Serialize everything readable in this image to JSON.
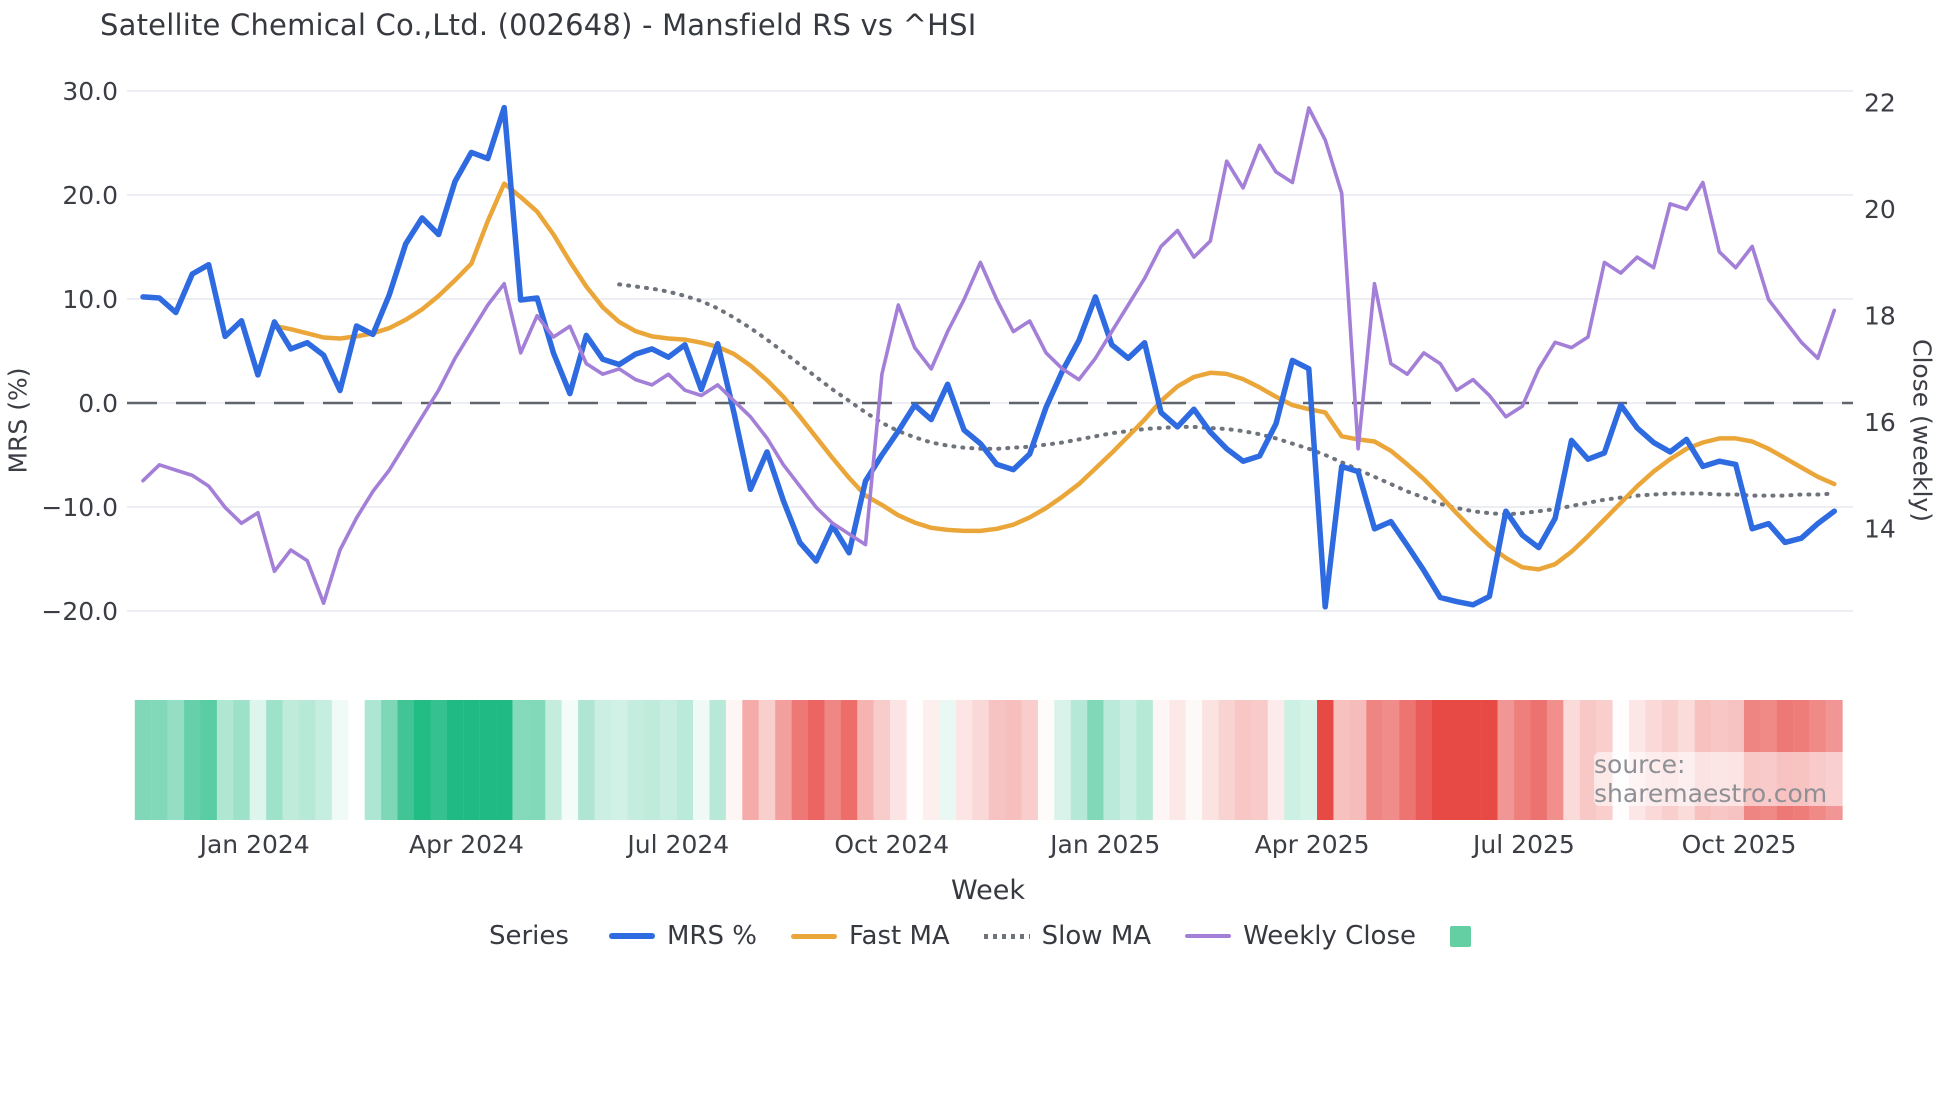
{
  "title": "Satellite Chemical Co.,Ltd. (002648) - Mansfield RS vs ^HSI",
  "source": "source: sharemaestro.com",
  "axes": {
    "left": {
      "label": "MRS (%)",
      "tick_labels": [
        "30.0",
        "20.0",
        "10.0",
        "0.0",
        "−10.0",
        "−20.0"
      ],
      "tick_values": [
        30,
        20,
        10,
        0,
        -10,
        -20
      ]
    },
    "right": {
      "label": "Close (weekly)",
      "tick_labels": [
        "22",
        "20",
        "18",
        "16",
        "14"
      ],
      "tick_values": [
        22,
        20,
        18,
        16,
        14
      ]
    },
    "x": {
      "label": "Week",
      "ticks": [
        {
          "label": "Jan 2024",
          "week": 6.8
        },
        {
          "label": "Apr 2024",
          "week": 19.7
        },
        {
          "label": "Jul 2024",
          "week": 32.6
        },
        {
          "label": "Oct 2024",
          "week": 45.6
        },
        {
          "label": "Jan 2025",
          "week": 58.6
        },
        {
          "label": "Apr 2025",
          "week": 71.2
        },
        {
          "label": "Jul 2025",
          "week": 84.1
        },
        {
          "label": "Oct 2025",
          "week": 97.2
        }
      ]
    }
  },
  "legend": {
    "title": "Series",
    "items": [
      {
        "label": "MRS %",
        "swatch": "line",
        "color": "#2f6be0",
        "thickness": 6
      },
      {
        "label": "Fast MA",
        "swatch": "line",
        "color": "#eba63a",
        "thickness": 5
      },
      {
        "label": "Slow MA",
        "swatch": "dots",
        "color": "#6f737b",
        "thickness": 4
      },
      {
        "label": "Weekly Close",
        "swatch": "line",
        "color": "#a47fd8",
        "thickness": 4
      },
      {
        "label": "",
        "swatch": "square",
        "color": "#63cfa2",
        "thickness": 21
      }
    ]
  },
  "chart_data": {
    "type": "line",
    "x_unit": "week",
    "n_points": 104,
    "x_range_note": "weekly points from mid-Nov 2023 to early-Nov 2025",
    "left_axis_range": [
      -20,
      30
    ],
    "right_axis_range": [
      14,
      22
    ],
    "zero_line": {
      "value": 0,
      "style": "dashed",
      "color": "#60656d"
    },
    "grid": true,
    "series": [
      {
        "name": "MRS %",
        "axis": "left",
        "color": "#2f6be0",
        "width": 5.5,
        "style": "solid",
        "start_week": 0,
        "values": [
          10.2,
          10.1,
          8.7,
          12.4,
          13.3,
          6.4,
          7.9,
          2.7,
          7.8,
          5.2,
          5.8,
          4.6,
          1.2,
          7.4,
          6.6,
          10.4,
          15.3,
          17.8,
          16.2,
          21.3,
          24.1,
          23.5,
          28.4,
          9.9,
          10.1,
          4.8,
          0.9,
          6.5,
          4.2,
          3.7,
          4.7,
          5.2,
          4.4,
          5.6,
          1.3,
          5.7,
          -1.0,
          -8.3,
          -4.7,
          -9.4,
          -13.4,
          -15.2,
          -11.8,
          -14.4,
          -7.5,
          -5.0,
          -2.7,
          -0.2,
          -1.6,
          1.8,
          -2.6,
          -3.9,
          -5.9,
          -6.4,
          -4.9,
          -0.4,
          3.1,
          6.0,
          10.2,
          5.6,
          4.3,
          5.8,
          -0.9,
          -2.3,
          -0.6,
          -2.8,
          -4.4,
          -5.6,
          -5.1,
          -2.0,
          4.1,
          3.3,
          -19.6,
          -6.1,
          -6.6,
          -12.1,
          -11.4,
          -13.7,
          -16.1,
          -18.7,
          -19.1,
          -19.4,
          -18.6,
          -10.4,
          -12.7,
          -13.9,
          -11.1,
          -3.6,
          -5.4,
          -4.8,
          -0.2,
          -2.4,
          -3.8,
          -4.7,
          -3.5,
          -6.1,
          -5.6,
          -5.9,
          -12.1,
          -11.6,
          -13.4,
          -13.0,
          -11.6,
          -10.4
        ]
      },
      {
        "name": "Fast MA",
        "axis": "left",
        "color": "#eba63a",
        "width": 4.5,
        "style": "solid",
        "start_week": 8,
        "values": [
          7.4,
          7.1,
          6.7,
          6.3,
          6.2,
          6.4,
          6.7,
          7.2,
          8.0,
          9.0,
          10.3,
          11.8,
          13.4,
          17.5,
          21.1,
          19.8,
          18.4,
          16.2,
          13.6,
          11.2,
          9.2,
          7.8,
          6.9,
          6.4,
          6.2,
          6.1,
          5.8,
          5.4,
          4.7,
          3.6,
          2.2,
          0.6,
          -1.3,
          -3.3,
          -5.3,
          -7.2,
          -8.9,
          -9.8,
          -10.8,
          -11.5,
          -12.0,
          -12.2,
          -12.3,
          -12.3,
          -12.1,
          -11.7,
          -11.0,
          -10.1,
          -9.0,
          -7.8,
          -6.3,
          -4.8,
          -3.2,
          -1.6,
          0.2,
          1.6,
          2.5,
          2.9,
          2.8,
          2.3,
          1.5,
          0.6,
          -0.2,
          -0.6,
          -0.9,
          -3.2,
          -3.5,
          -3.7,
          -4.6,
          -5.9,
          -7.3,
          -8.9,
          -10.6,
          -12.2,
          -13.7,
          -14.9,
          -15.8,
          -16.0,
          -15.5,
          -14.3,
          -12.8,
          -11.2,
          -9.6,
          -8.0,
          -6.6,
          -5.4,
          -4.4,
          -3.8,
          -3.4,
          -3.4,
          -3.7,
          -4.4,
          -5.3,
          -6.2,
          -7.1,
          -7.8
        ]
      },
      {
        "name": "Slow MA",
        "axis": "left",
        "color": "#6f737b",
        "width": 4,
        "style": "dotted",
        "start_week": 29,
        "values": [
          11.4,
          11.2,
          11.0,
          10.7,
          10.3,
          9.8,
          9.1,
          8.2,
          7.2,
          6.1,
          4.9,
          3.7,
          2.5,
          1.3,
          0.2,
          -0.9,
          -1.9,
          -2.7,
          -3.3,
          -3.8,
          -4.1,
          -4.3,
          -4.4,
          -4.4,
          -4.3,
          -4.2,
          -4.0,
          -3.8,
          -3.5,
          -3.2,
          -2.9,
          -2.7,
          -2.5,
          -2.4,
          -2.3,
          -2.3,
          -2.4,
          -2.5,
          -2.7,
          -3.0,
          -3.4,
          -3.9,
          -4.4,
          -5.0,
          -5.7,
          -6.4,
          -7.1,
          -7.8,
          -8.5,
          -9.1,
          -9.7,
          -10.1,
          -10.4,
          -10.6,
          -10.7,
          -10.6,
          -10.4,
          -10.2,
          -9.9,
          -9.6,
          -9.3,
          -9.1,
          -8.9,
          -8.8,
          -8.7,
          -8.7,
          -8.7,
          -8.8,
          -8.8,
          -8.9,
          -8.9,
          -8.9,
          -8.8,
          -8.8,
          -8.7
        ]
      },
      {
        "name": "Weekly Close",
        "axis": "right",
        "color": "#a47fd8",
        "width": 3.6,
        "style": "solid",
        "start_week": 0,
        "values": [
          14.9,
          15.2,
          15.1,
          15.0,
          14.8,
          14.4,
          14.1,
          14.3,
          13.2,
          13.6,
          13.4,
          12.6,
          13.6,
          14.2,
          14.7,
          15.1,
          15.6,
          16.1,
          16.6,
          17.2,
          17.7,
          18.2,
          18.6,
          17.3,
          18.0,
          17.6,
          17.8,
          17.1,
          16.9,
          17.0,
          16.8,
          16.7,
          16.9,
          16.6,
          16.5,
          16.7,
          16.4,
          16.1,
          15.7,
          15.2,
          14.8,
          14.4,
          14.1,
          13.9,
          13.7,
          16.9,
          18.2,
          17.4,
          17.0,
          17.7,
          18.3,
          19.0,
          18.3,
          17.7,
          17.9,
          17.3,
          17.0,
          16.8,
          17.2,
          17.7,
          18.2,
          18.7,
          19.3,
          19.6,
          19.1,
          19.4,
          20.9,
          20.4,
          21.2,
          20.7,
          20.5,
          21.9,
          21.3,
          20.3,
          15.5,
          18.6,
          17.1,
          16.9,
          17.3,
          17.1,
          16.6,
          16.8,
          16.5,
          16.1,
          16.3,
          17.0,
          17.5,
          17.4,
          17.6,
          19.0,
          18.8,
          19.1,
          18.9,
          20.1,
          20.0,
          20.5,
          19.2,
          18.9,
          19.3,
          18.3,
          17.9,
          17.5,
          17.2,
          18.1
        ]
      }
    ],
    "heatmap": {
      "description": "weekly strip below plot; green for positive MRS, red for negative, intensity proportional to |MRS|",
      "derived_from": "MRS %",
      "missing_weeks": [
        13
      ],
      "positive_color": "#20bb84",
      "negative_color": "#e74945",
      "saturation_at_abs": 18
    }
  }
}
